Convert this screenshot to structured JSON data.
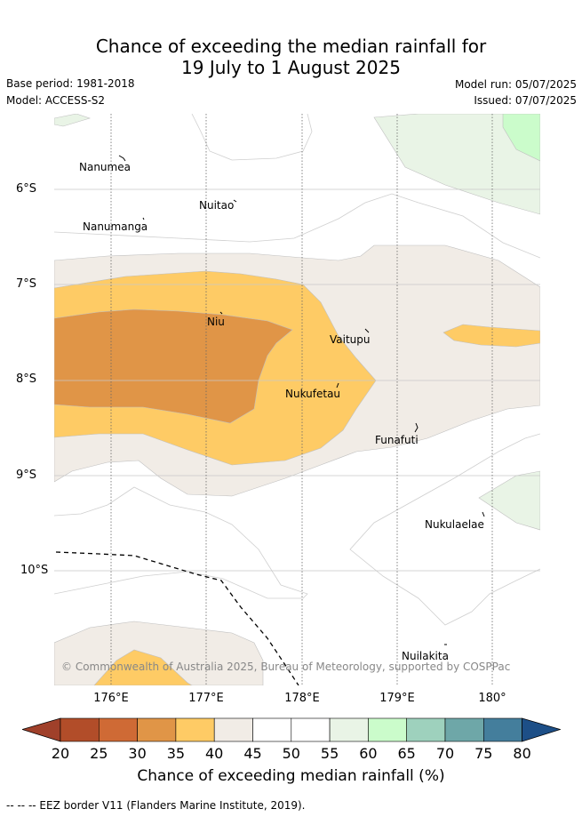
{
  "title": {
    "line1": "Chance of exceeding the median rainfall for",
    "line2": "19 July to 1 August 2025"
  },
  "meta": {
    "base_period": "Base period: 1981-2018",
    "model": "Model: ACCESS-S2",
    "model_run": "Model run: 05/07/2025",
    "issued": "Issued: 07/07/2025"
  },
  "map": {
    "lat_labels": [
      "6°S",
      "7°S",
      "8°S",
      "9°S",
      "10°S"
    ],
    "lon_labels": [
      "176°E",
      "177°E",
      "178°E",
      "179°E",
      "180°"
    ],
    "places": {
      "nanumea": "Nanumea",
      "nuitao": "Nuitao",
      "nanumanga": "Nanumanga",
      "niu": "Niu",
      "vaitupu": "Vaitupu",
      "nukufetau": "Nukufetau",
      "funafuti": "Funafuti",
      "nukulaelae": "Nukulaelae",
      "nuilakita": "Nuilakita"
    },
    "copyright": "© Commonwealth of Australia 2025, Bureau of Meteorology, supported by COSPPac"
  },
  "colorbar": {
    "labels": [
      "20",
      "25",
      "30",
      "35",
      "40",
      "45",
      "50",
      "55",
      "60",
      "65",
      "70",
      "75",
      "80"
    ],
    "colors": [
      "#b24d29",
      "#cf6a35",
      "#e09547",
      "#fecb65",
      "#f1ece6",
      "#ffffff",
      "#ffffff",
      "#e9f4e6",
      "#cbfccb",
      "#9ed1bd",
      "#6ea7a8",
      "#447e9c"
    ],
    "under_color": "#a0402a",
    "over_color": "#1d4f87",
    "title": "Chance of exceeding median rainfall (%)"
  },
  "footer": "-- -- -- EEZ border V11 (Flanders Marine Institute, 2019)."
}
